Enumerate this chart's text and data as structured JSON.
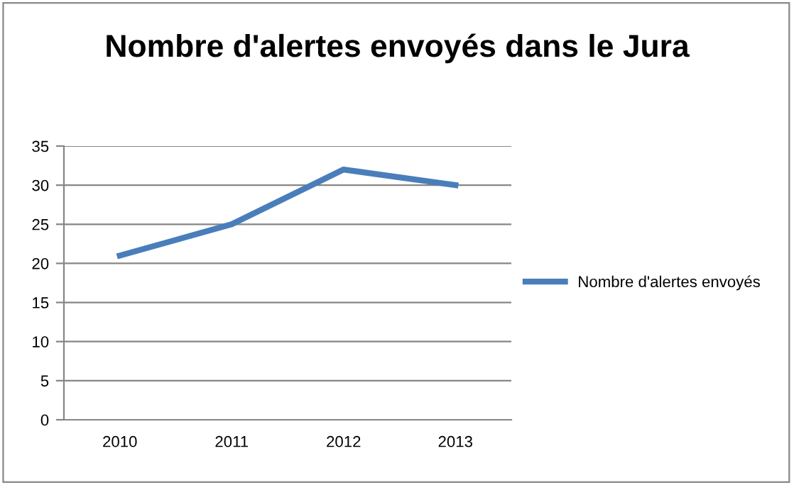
{
  "chart_data": {
    "type": "line",
    "title": "Nombre d'alertes envoyés dans le Jura",
    "categories": [
      "2010",
      "2011",
      "2012",
      "2013"
    ],
    "series": [
      {
        "name": "Nombre d'alertes envoyés",
        "color": "#4a7ebb",
        "values": [
          21,
          25,
          32,
          30
        ]
      }
    ],
    "ylim": [
      0,
      35
    ],
    "yticks": [
      0,
      5,
      10,
      15,
      20,
      25,
      30,
      35
    ],
    "grid": "y",
    "legend": "right",
    "marker": "none",
    "line_style": "solid"
  }
}
